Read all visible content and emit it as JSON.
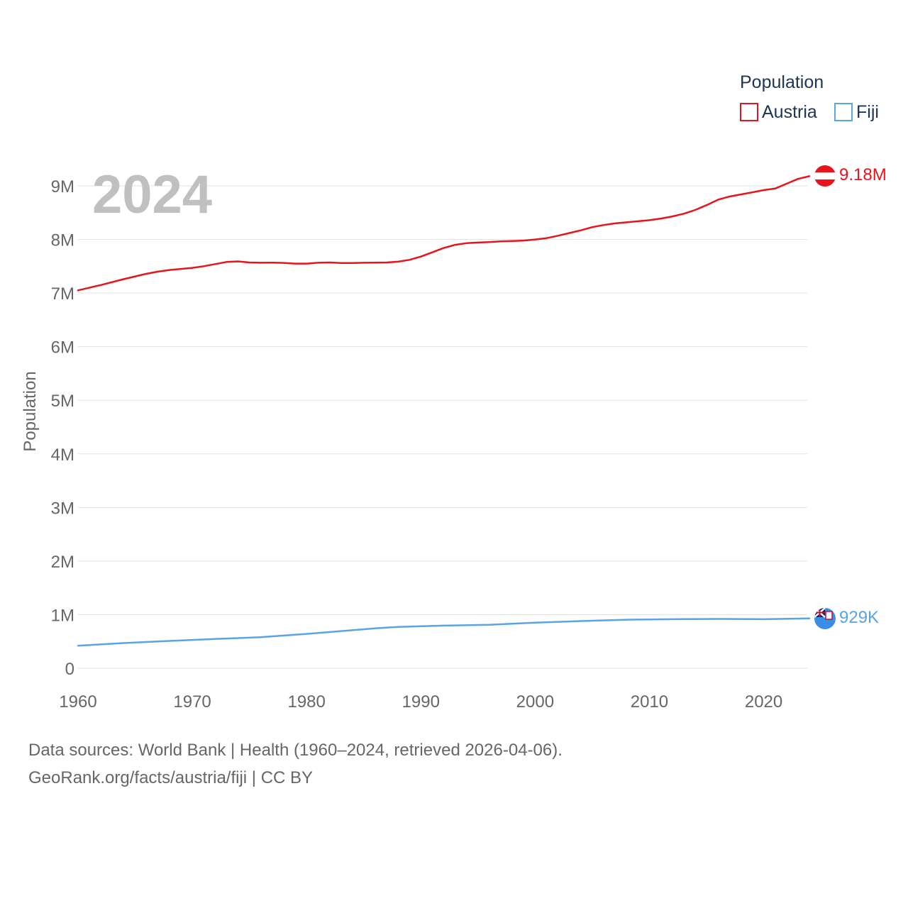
{
  "chart_data": {
    "type": "line",
    "year_label": "2024",
    "ylabel": "Population",
    "xlim": [
      1960,
      2024
    ],
    "ylim": [
      0,
      9000000
    ],
    "y_ticks": [
      {
        "value": 0,
        "label": "0"
      },
      {
        "value": 1000000,
        "label": "1M"
      },
      {
        "value": 2000000,
        "label": "2M"
      },
      {
        "value": 3000000,
        "label": "3M"
      },
      {
        "value": 4000000,
        "label": "4M"
      },
      {
        "value": 5000000,
        "label": "5M"
      },
      {
        "value": 6000000,
        "label": "6M"
      },
      {
        "value": 7000000,
        "label": "7M"
      },
      {
        "value": 8000000,
        "label": "8M"
      },
      {
        "value": 9000000,
        "label": "9M"
      }
    ],
    "x_ticks": [
      {
        "value": 1960,
        "label": "1960"
      },
      {
        "value": 1970,
        "label": "1970"
      },
      {
        "value": 1980,
        "label": "1980"
      },
      {
        "value": 1990,
        "label": "1990"
      },
      {
        "value": 2000,
        "label": "2000"
      },
      {
        "value": 2010,
        "label": "2010"
      },
      {
        "value": 2020,
        "label": "2020"
      }
    ],
    "legend": {
      "title": "Population",
      "position": "top-right"
    },
    "series": [
      {
        "name": "Austria",
        "color": "#e8141b",
        "end_label": "9.18M",
        "x": [
          1960,
          1962,
          1964,
          1966,
          1967,
          1968,
          1970,
          1971,
          1972,
          1973,
          1974,
          1975,
          1976,
          1977,
          1978,
          1979,
          1980,
          1981,
          1982,
          1983,
          1984,
          1985,
          1986,
          1987,
          1988,
          1989,
          1990,
          1991,
          1992,
          1993,
          1994,
          1995,
          1996,
          1997,
          1998,
          1999,
          2000,
          2001,
          2002,
          2003,
          2004,
          2005,
          2006,
          2007,
          2008,
          2009,
          2010,
          2011,
          2012,
          2013,
          2014,
          2015,
          2016,
          2017,
          2018,
          2019,
          2020,
          2021,
          2022,
          2023,
          2024
        ],
        "values": [
          7050000,
          7150000,
          7260000,
          7360000,
          7400000,
          7430000,
          7470000,
          7500000,
          7540000,
          7580000,
          7590000,
          7570000,
          7565000,
          7568000,
          7562000,
          7550000,
          7550000,
          7565000,
          7570000,
          7560000,
          7560000,
          7565000,
          7567000,
          7570000,
          7585000,
          7620000,
          7680000,
          7760000,
          7840000,
          7900000,
          7930000,
          7943000,
          7950000,
          7965000,
          7970000,
          7980000,
          8000000,
          8025000,
          8070000,
          8120000,
          8170000,
          8230000,
          8270000,
          8300000,
          8320000,
          8340000,
          8360000,
          8390000,
          8430000,
          8480000,
          8550000,
          8640000,
          8740000,
          8800000,
          8840000,
          8880000,
          8920000,
          8950000,
          9040000,
          9130000,
          9180000
        ]
      },
      {
        "name": "Fiji",
        "color": "#5aa3e4",
        "end_label": "929K",
        "x": [
          1960,
          1964,
          1968,
          1972,
          1976,
          1980,
          1984,
          1986,
          1988,
          1992,
          1996,
          2000,
          2004,
          2008,
          2012,
          2016,
          2020,
          2024
        ],
        "values": [
          420000,
          470000,
          510000,
          545000,
          580000,
          640000,
          710000,
          745000,
          770000,
          795000,
          810000,
          850000,
          880000,
          905000,
          915000,
          920000,
          915000,
          929000
        ]
      }
    ]
  },
  "footer": {
    "source_line": "Data sources: World Bank | Health (1960–2024, retrieved 2026-04-06).",
    "url_line": "GeoRank.org/facts/austria/fiji | CC BY"
  }
}
